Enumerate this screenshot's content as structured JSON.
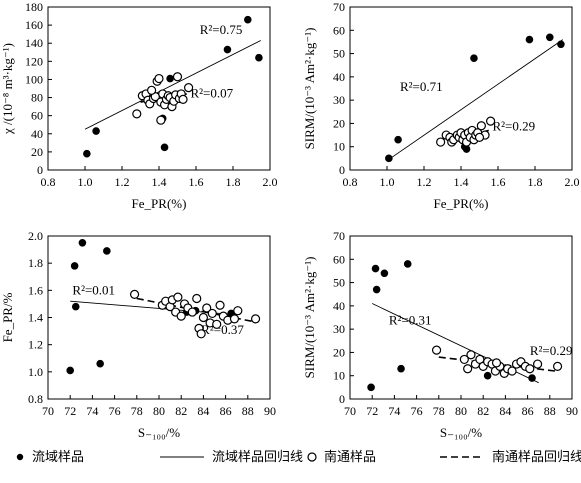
{
  "charts": [
    {
      "type": "scatter",
      "ylabel": "χ /(10⁻⁸ m³·kg⁻¹)",
      "xlabel": "Fe_PR(%)",
      "xlim": [
        0.8,
        2.0
      ],
      "ylim": [
        0,
        180
      ],
      "xticks": [
        0.8,
        1.0,
        1.2,
        1.4,
        1.6,
        1.8,
        2.0
      ],
      "yticks": [
        0,
        20,
        40,
        60,
        80,
        100,
        120,
        140,
        160,
        180
      ],
      "series": [
        {
          "name": "流域样品",
          "marker": "filled",
          "points": [
            [
              1.01,
              18
            ],
            [
              1.06,
              43
            ],
            [
              1.42,
              57
            ],
            [
              1.43,
              25
            ],
            [
              1.46,
              101
            ],
            [
              1.77,
              133
            ],
            [
              1.88,
              166
            ],
            [
              1.94,
              124
            ]
          ]
        },
        {
          "name": "南通样品",
          "marker": "open",
          "points": [
            [
              1.28,
              62
            ],
            [
              1.31,
              82
            ],
            [
              1.33,
              84
            ],
            [
              1.34,
              77
            ],
            [
              1.35,
              73
            ],
            [
              1.37,
              79
            ],
            [
              1.38,
              81
            ],
            [
              1.39,
              98
            ],
            [
              1.4,
              101
            ],
            [
              1.41,
              75
            ],
            [
              1.42,
              84
            ],
            [
              1.43,
              72
            ],
            [
              1.44,
              78
            ],
            [
              1.45,
              82
            ],
            [
              1.46,
              80
            ],
            [
              1.47,
              70
            ],
            [
              1.48,
              76
            ],
            [
              1.49,
              83
            ],
            [
              1.5,
              103
            ],
            [
              1.51,
              79
            ],
            [
              1.52,
              84
            ],
            [
              1.53,
              78
            ],
            [
              1.56,
              91
            ],
            [
              1.41,
              55
            ],
            [
              1.36,
              88
            ]
          ]
        }
      ],
      "regressions": [
        {
          "series": "流域样品",
          "style": "solid",
          "from": [
            1.0,
            45
          ],
          "to": [
            1.95,
            143
          ],
          "r2_label": "R²=0.75",
          "r2_at": [
            1.62,
            150
          ]
        },
        {
          "series": "南通样品",
          "style": "dashed",
          "from": [
            1.3,
            75
          ],
          "to": [
            1.55,
            84
          ],
          "r2_label": "R²=0.07",
          "r2_at": [
            1.57,
            80
          ]
        }
      ]
    },
    {
      "type": "scatter",
      "ylabel": "SIRM/(10⁻³ Am²·kg⁻¹)",
      "xlabel": "Fe_PR(%)",
      "xlim": [
        0.8,
        2.0
      ],
      "ylim": [
        0,
        70
      ],
      "xticks": [
        0.8,
        1.0,
        1.2,
        1.4,
        1.6,
        1.8,
        2.0
      ],
      "yticks": [
        0,
        10,
        20,
        30,
        40,
        50,
        60,
        70
      ],
      "series": [
        {
          "name": "流域样品",
          "marker": "filled",
          "points": [
            [
              1.01,
              5
            ],
            [
              1.06,
              13
            ],
            [
              1.42,
              10
            ],
            [
              1.43,
              9
            ],
            [
              1.47,
              48
            ],
            [
              1.77,
              56
            ],
            [
              1.88,
              57
            ],
            [
              1.94,
              54
            ]
          ]
        },
        {
          "name": "南通样品",
          "marker": "open",
          "points": [
            [
              1.29,
              12
            ],
            [
              1.32,
              15
            ],
            [
              1.34,
              14
            ],
            [
              1.35,
              12
            ],
            [
              1.36,
              13
            ],
            [
              1.38,
              15
            ],
            [
              1.39,
              14
            ],
            [
              1.4,
              16
            ],
            [
              1.41,
              13
            ],
            [
              1.42,
              15
            ],
            [
              1.43,
              12
            ],
            [
              1.44,
              16
            ],
            [
              1.45,
              14
            ],
            [
              1.46,
              17
            ],
            [
              1.47,
              13
            ],
            [
              1.48,
              15
            ],
            [
              1.49,
              16
            ],
            [
              1.51,
              19
            ],
            [
              1.53,
              15
            ],
            [
              1.56,
              21
            ],
            [
              1.5,
              14
            ]
          ]
        }
      ],
      "regressions": [
        {
          "series": "流域样品",
          "style": "solid",
          "from": [
            1.0,
            4
          ],
          "to": [
            1.95,
            56
          ],
          "r2_label": "R²=0.71",
          "r2_at": [
            1.07,
            34
          ]
        },
        {
          "series": "南通样品",
          "style": "dashed",
          "from": [
            1.35,
            13
          ],
          "to": [
            1.55,
            17
          ],
          "r2_label": "R²=0.29",
          "r2_at": [
            1.57,
            17
          ]
        }
      ]
    },
    {
      "type": "scatter",
      "ylabel": "Fe_PR/%",
      "xlabel": "S₋₁₀₀/%",
      "xlim": [
        70,
        90
      ],
      "ylim": [
        0.8,
        2.0
      ],
      "xticks": [
        70,
        72,
        74,
        76,
        78,
        80,
        82,
        84,
        86,
        88,
        90
      ],
      "yticks": [
        0.8,
        1.0,
        1.2,
        1.4,
        1.6,
        1.8,
        2.0
      ],
      "series": [
        {
          "name": "流域样品",
          "marker": "filled",
          "points": [
            [
              72.0,
              1.01
            ],
            [
              72.4,
              1.78
            ],
            [
              72.5,
              1.48
            ],
            [
              73.1,
              1.95
            ],
            [
              74.7,
              1.06
            ],
            [
              75.3,
              1.89
            ],
            [
              82.5,
              1.44
            ],
            [
              83.3,
              1.45
            ],
            [
              86.5,
              1.43
            ]
          ]
        },
        {
          "name": "南通样品",
          "marker": "open",
          "points": [
            [
              77.8,
              1.57
            ],
            [
              80.3,
              1.49
            ],
            [
              80.6,
              1.52
            ],
            [
              81.0,
              1.48
            ],
            [
              81.2,
              1.53
            ],
            [
              81.5,
              1.44
            ],
            [
              81.7,
              1.55
            ],
            [
              82.0,
              1.41
            ],
            [
              82.3,
              1.5
            ],
            [
              82.6,
              1.47
            ],
            [
              83.0,
              1.44
            ],
            [
              83.4,
              1.54
            ],
            [
              83.6,
              1.32
            ],
            [
              83.8,
              1.28
            ],
            [
              84.0,
              1.4
            ],
            [
              84.3,
              1.47
            ],
            [
              84.6,
              1.36
            ],
            [
              84.8,
              1.43
            ],
            [
              85.2,
              1.35
            ],
            [
              85.5,
              1.49
            ],
            [
              85.8,
              1.41
            ],
            [
              86.2,
              1.38
            ],
            [
              86.8,
              1.39
            ],
            [
              87.1,
              1.45
            ],
            [
              88.7,
              1.39
            ]
          ]
        }
      ],
      "regressions": [
        {
          "series": "流域样品",
          "style": "solid",
          "from": [
            72,
            1.52
          ],
          "to": [
            87,
            1.42
          ],
          "r2_label": "R²=0.01",
          "r2_at": [
            72.2,
            1.57
          ]
        },
        {
          "series": "南通样品",
          "style": "dashed",
          "from": [
            78,
            1.54
          ],
          "to": [
            88.5,
            1.37
          ],
          "r2_label": "R²=0.37",
          "r2_at": [
            83.8,
            1.28
          ]
        }
      ]
    },
    {
      "type": "scatter",
      "ylabel": "SIRM/(10⁻³ Am²·kg⁻¹)",
      "xlabel": "S₋₁₀₀/%",
      "xlim": [
        70,
        90
      ],
      "ylim": [
        0,
        70
      ],
      "xticks": [
        70,
        72,
        74,
        76,
        78,
        80,
        82,
        84,
        86,
        88,
        90
      ],
      "yticks": [
        0,
        10,
        20,
        30,
        40,
        50,
        60,
        70
      ],
      "series": [
        {
          "name": "流域样品",
          "marker": "filled",
          "points": [
            [
              71.9,
              5
            ],
            [
              72.3,
              56
            ],
            [
              72.4,
              47
            ],
            [
              73.1,
              54
            ],
            [
              74.6,
              13
            ],
            [
              75.2,
              58
            ],
            [
              82.4,
              10
            ],
            [
              86.4,
              9
            ]
          ]
        },
        {
          "name": "南通样品",
          "marker": "open",
          "points": [
            [
              77.8,
              21
            ],
            [
              80.3,
              17
            ],
            [
              80.6,
              13
            ],
            [
              80.9,
              19
            ],
            [
              81.3,
              15
            ],
            [
              81.7,
              17
            ],
            [
              82.0,
              14
            ],
            [
              82.4,
              16
            ],
            [
              82.8,
              15
            ],
            [
              83.1,
              12
            ],
            [
              83.5,
              14
            ],
            [
              83.9,
              11
            ],
            [
              84.2,
              13
            ],
            [
              84.6,
              12
            ],
            [
              85.0,
              15
            ],
            [
              85.4,
              16
            ],
            [
              85.8,
              14
            ],
            [
              86.2,
              13
            ],
            [
              86.9,
              15
            ],
            [
              88.7,
              14
            ],
            [
              83.2,
              15.5
            ]
          ]
        }
      ],
      "regressions": [
        {
          "series": "流域样品",
          "style": "solid",
          "from": [
            72,
            41
          ],
          "to": [
            87,
            7
          ],
          "r2_label": "R²=0.31",
          "r2_at": [
            73.5,
            32
          ]
        },
        {
          "series": "南通样品",
          "style": "dashed",
          "from": [
            78,
            18
          ],
          "to": [
            88.5,
            12
          ],
          "r2_label": "R²=0.29",
          "r2_at": [
            86.2,
            19
          ]
        }
      ]
    }
  ],
  "legend": {
    "items": [
      {
        "label": "流域样品",
        "kind": "filled-dot"
      },
      {
        "label": "流域样品回归线",
        "kind": "solid-line"
      },
      {
        "label": "南通样品",
        "kind": "open-circle"
      },
      {
        "label": "南通样品回归线",
        "kind": "dashed-line"
      }
    ]
  }
}
